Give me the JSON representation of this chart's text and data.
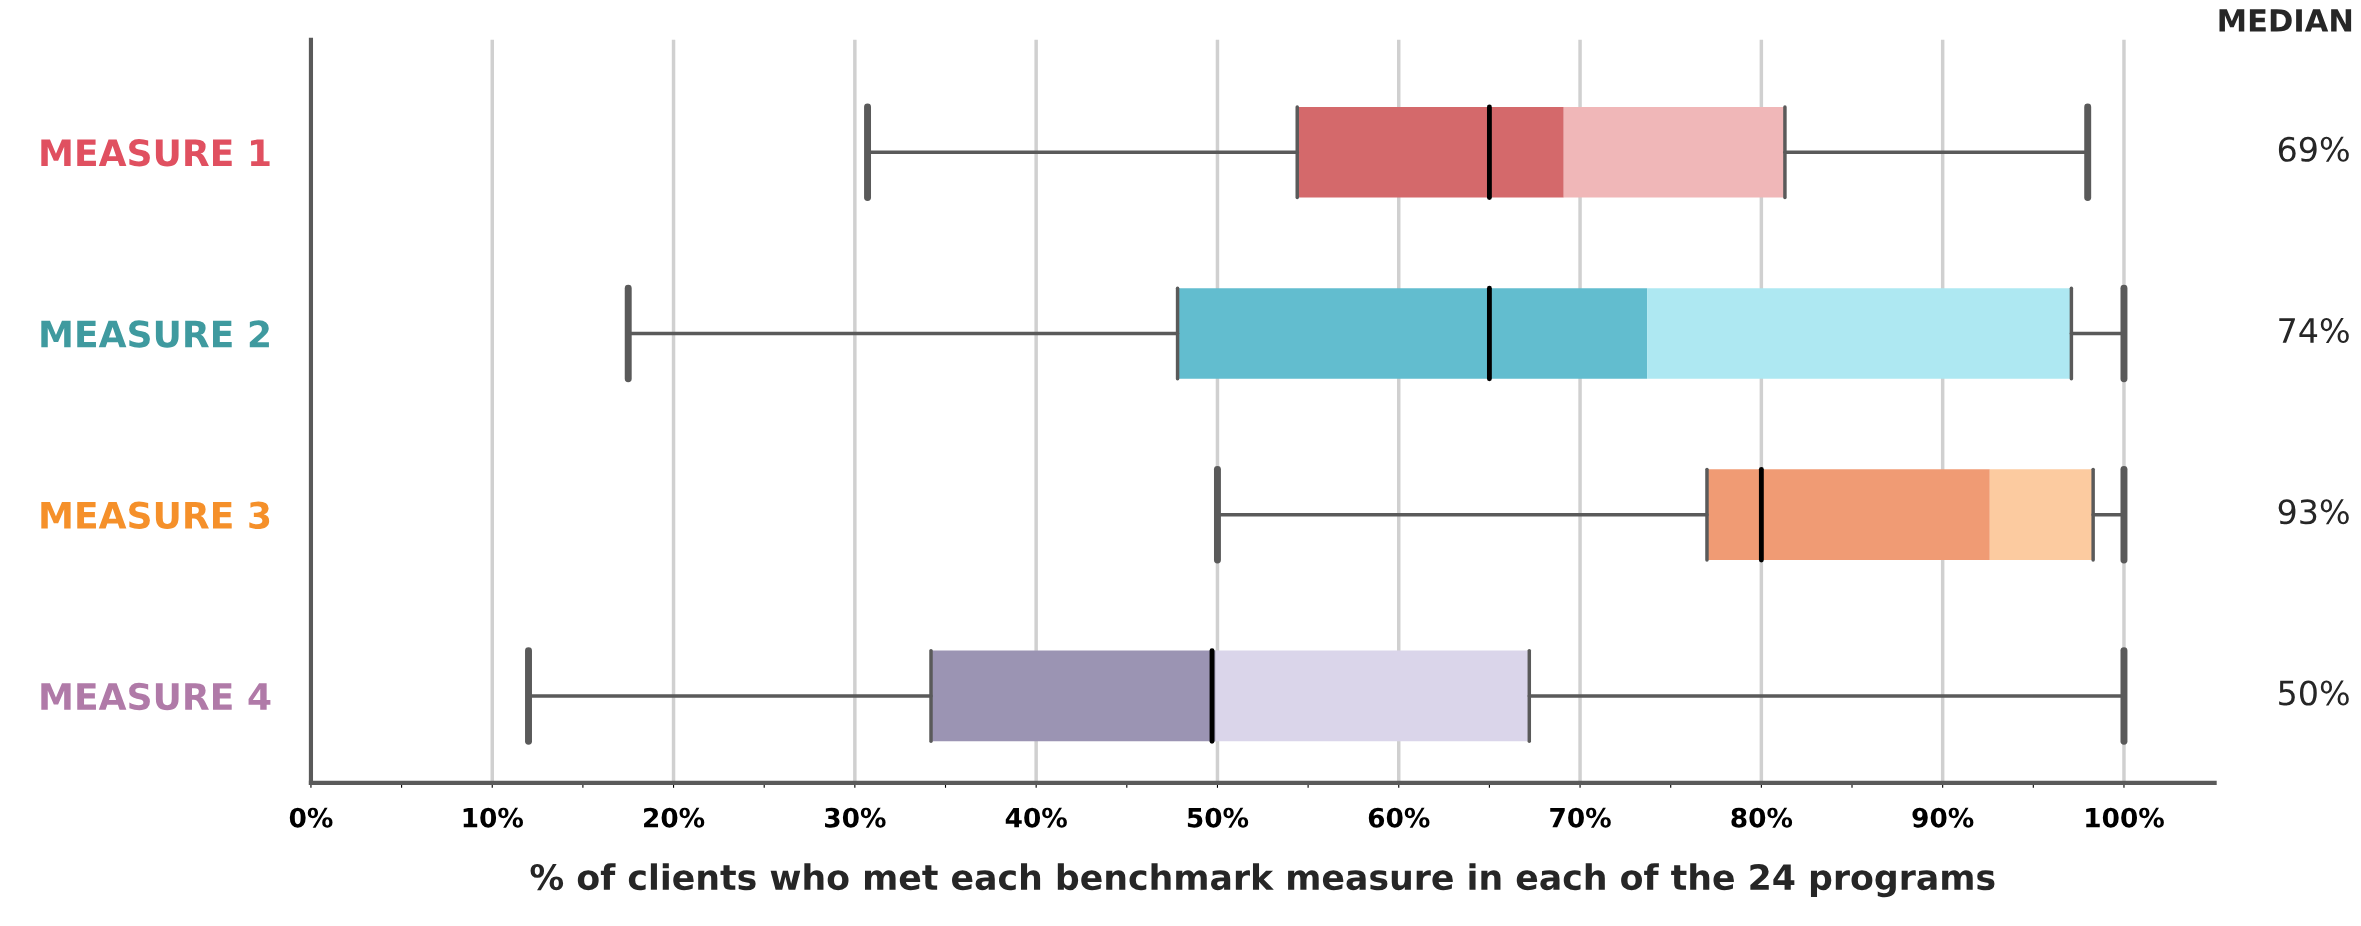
{
  "chart_data": {
    "type": "box",
    "orientation": "horizontal",
    "xlabel": "% of clients who met each benchmark measure in each of the 24 programs",
    "categories": [
      "MEASURE 1",
      "MEASURE 2",
      "MEASURE 3",
      "MEASURE 4"
    ],
    "boxes": [
      {
        "low": 30.7,
        "q1": 54.4,
        "median": 69.1,
        "q3": 81.3,
        "high": 98.0,
        "mean": 65
      },
      {
        "low": 17.5,
        "q1": 47.8,
        "median": 73.7,
        "q3": 97.1,
        "high": 100,
        "mean": 65
      },
      {
        "low": 50,
        "q1": 77.0,
        "median": 92.6,
        "q3": 98.3,
        "high": 100,
        "mean": 80
      },
      {
        "low": 12.0,
        "q1": 34.2,
        "median": 49.9,
        "q3": 67.2,
        "high": 100,
        "mean": 49.7
      }
    ],
    "colors": [
      [
        "#d4696b",
        "#f0b7b8"
      ],
      [
        "#62bdcf",
        "#aee8f2"
      ],
      [
        "#f09b74",
        "#fccba0"
      ],
      [
        "#9b94b3",
        "#dad5ea"
      ]
    ],
    "value_labels": [
      "69%",
      "74%",
      "93%",
      "50%"
    ],
    "annotations": [
      "MEDIAN"
    ],
    "xlim": [
      0,
      105
    ],
    "xticks": [
      {
        "value": 0,
        "label": "0%"
      },
      {
        "value": 5,
        "label": null
      },
      {
        "value": 10,
        "label": "10%"
      },
      {
        "value": 15,
        "label": null
      },
      {
        "value": 20,
        "label": "20%"
      },
      {
        "value": 25,
        "label": null
      },
      {
        "value": 30,
        "label": "30%"
      },
      {
        "value": 35,
        "label": null
      },
      {
        "value": 40,
        "label": "40%"
      },
      {
        "value": 45,
        "label": null
      },
      {
        "value": 50,
        "label": "50%"
      },
      {
        "value": 55,
        "label": null
      },
      {
        "value": 60,
        "label": "60%"
      },
      {
        "value": 65,
        "label": null
      },
      {
        "value": 70,
        "label": "70%"
      },
      {
        "value": 75,
        "label": null
      },
      {
        "value": 80,
        "label": "80%"
      },
      {
        "value": 85,
        "label": null
      },
      {
        "value": 90,
        "label": "90%"
      },
      {
        "value": 95,
        "label": null
      },
      {
        "value": 100,
        "label": "100%"
      }
    ],
    "grid": "x"
  }
}
